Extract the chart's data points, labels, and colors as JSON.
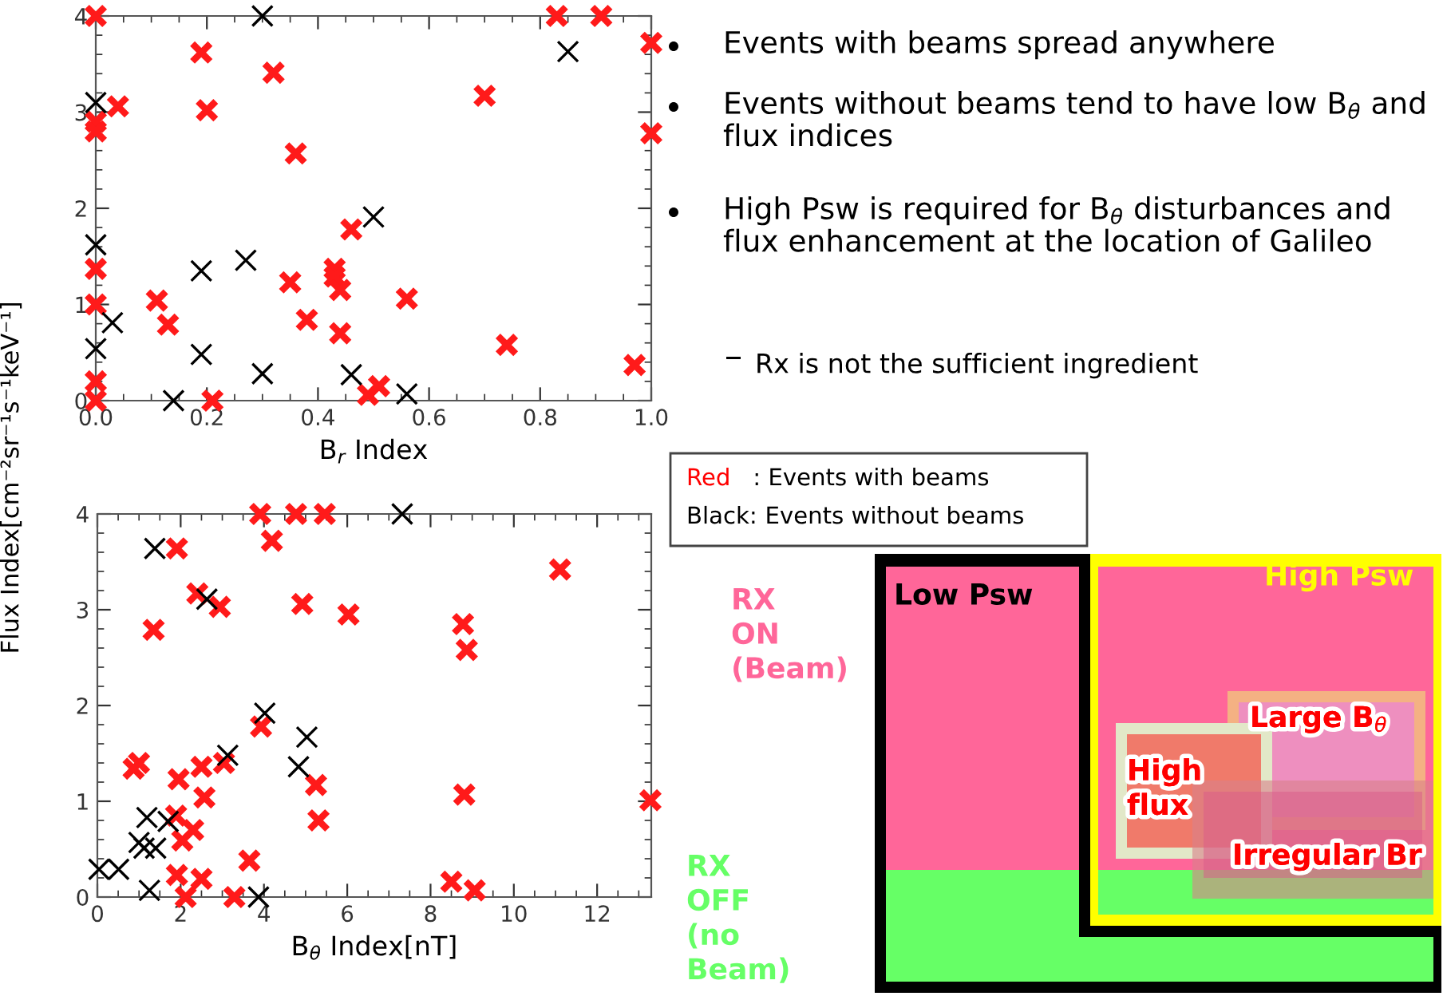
{
  "chart_data": [
    {
      "type": "scatter",
      "xlabel": "B$_{r}$ Index",
      "ylabel": "Flux Index[cm⁻²sr⁻¹s⁻¹keV⁻¹]",
      "xlim": [
        0,
        1
      ],
      "ylim": [
        0,
        4
      ],
      "xticks": [
        {
          "value": 0,
          "label": "0.0"
        },
        0.2,
        0.4,
        0.6,
        0.8,
        {
          "value": 1,
          "label": "1.0"
        }
      ],
      "yticks": [
        0,
        1,
        2,
        3,
        4
      ],
      "marker": "cross",
      "grid": false,
      "series": [
        {
          "color": "#ff1a1a",
          "x": [
            0,
            0,
            0,
            0,
            0,
            0,
            0,
            0.04,
            0.19,
            0.2,
            0.21,
            0.11,
            0.13,
            0.32,
            0.36,
            0.35,
            0.38,
            0.43,
            0.43,
            0.44,
            0.44,
            0.46,
            0.49,
            0.51,
            0.56,
            0.7,
            0.74,
            0.83,
            0.91,
            1.0,
            1.0,
            0.97
          ],
          "values": [
            4.0,
            2.9,
            2.8,
            1.37,
            1.0,
            0.2,
            0.0,
            3.06,
            3.62,
            3.02,
            0.0,
            1.04,
            0.79,
            3.41,
            2.57,
            1.23,
            0.84,
            1.37,
            1.29,
            1.15,
            0.7,
            1.78,
            0.06,
            0.15,
            1.06,
            3.17,
            0.58,
            4.0,
            4.0,
            3.72,
            2.78,
            0.37
          ]
        },
        {
          "color": "#000000",
          "x": [
            0.3,
            0.85,
            0,
            0,
            0,
            0.03,
            0.19,
            0.19,
            0.14,
            0.27,
            0.3,
            0.5,
            0.46,
            0.56
          ],
          "values": [
            4.0,
            3.63,
            3.1,
            1.62,
            0.54,
            0.81,
            1.35,
            0.48,
            0.0,
            1.46,
            0.28,
            1.91,
            0.27,
            0.07
          ]
        }
      ]
    },
    {
      "type": "scatter",
      "xlabel": "B$_{θ}$ Index[nT]",
      "xlim": [
        0,
        13.3
      ],
      "ylim": [
        0,
        4
      ],
      "xticks": [
        0,
        2,
        4,
        6,
        8,
        10,
        12
      ],
      "yticks": [
        0,
        1,
        2,
        3,
        4
      ],
      "marker": "cross",
      "grid": false,
      "series": [
        {
          "color": "#ff1a1a",
          "x": [
            3.91,
            4.77,
            5.46,
            4.19,
            1.91,
            1.35,
            2.4,
            2.94,
            4.92,
            6.03,
            8.78,
            8.87,
            11.11,
            3.93,
            0.87,
            1.0,
            1.95,
            2.5,
            3.04,
            2.57,
            5.25,
            5.31,
            8.81,
            13.28,
            1.89,
            2.04,
            2.3,
            3.65,
            1.91,
            2.5,
            2.12,
            3.29,
            8.5,
            9.06
          ],
          "values": [
            4.0,
            4.0,
            4.0,
            3.72,
            3.64,
            2.79,
            3.17,
            3.03,
            3.06,
            2.95,
            2.85,
            2.58,
            3.42,
            1.78,
            1.34,
            1.4,
            1.23,
            1.36,
            1.4,
            1.04,
            1.17,
            0.8,
            1.07,
            1.01,
            0.85,
            0.59,
            0.7,
            0.38,
            0.23,
            0.19,
            0.0,
            0.0,
            0.16,
            0.07
          ]
        },
        {
          "color": "#000000",
          "x": [
            1.38,
            2.63,
            7.32,
            4.02,
            5.03,
            4.83,
            3.13,
            1.19,
            1.7,
            1.0,
            1.12,
            1.4,
            0.04,
            0.51,
            1.25,
            3.87
          ],
          "values": [
            3.64,
            3.11,
            4.0,
            1.92,
            1.67,
            1.36,
            1.48,
            0.83,
            0.79,
            0.57,
            0.51,
            0.51,
            0.29,
            0.29,
            0.07,
            0.0
          ]
        }
      ]
    },
    {
      "type": "other",
      "annotations": [
        "Events with beams spread anywhere",
        "Events without beams tend to have low B$_{θ}$ and flux indices",
        "High Psw is required for B$_{θ}$ disturbances and flux enhancement at the location of Galileo",
        "Rx is not the sufficient ingredient",
        "Red   : Events with beams",
        "Black: Events without beams",
        "RX ON (Beam)",
        "RX OFF (no Beam)",
        "Low Psw",
        "High Psw",
        "Large B$_{θ}$",
        "High flux",
        "Irregular Br"
      ]
    }
  ]
}
